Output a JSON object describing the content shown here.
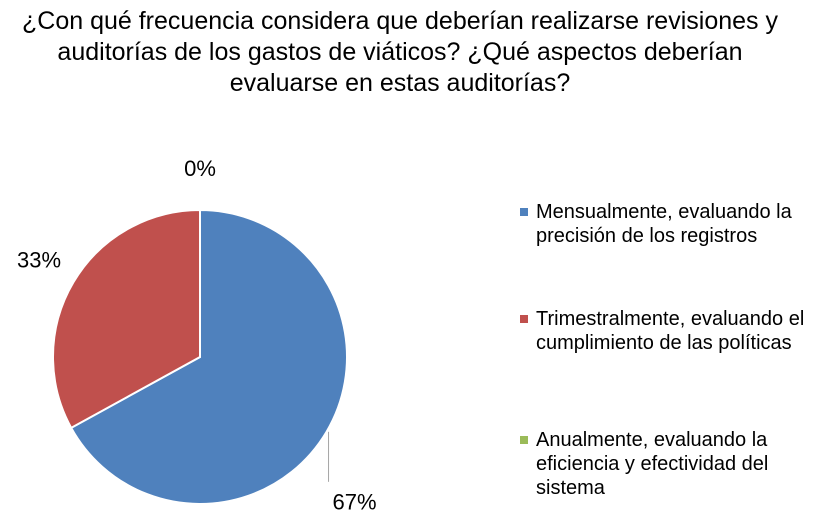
{
  "chart_data": {
    "type": "pie",
    "title": "¿Con qué frecuencia considera que deberían realizarse revisiones y auditorías de los gastos de viáticos? ¿Qué aspectos deberían evaluarse en estas auditorías?",
    "categories": [
      "Mensualmente, evaluando la precisión de los registros",
      "Trimestralmente, evaluando el cumplimiento de las políticas",
      "Anualmente, evaluando la eficiencia y efectividad del sistema"
    ],
    "values": [
      67,
      33,
      0
    ],
    "value_labels": [
      "67%",
      "33%",
      "0%"
    ],
    "colors": [
      "#4f81bd",
      "#c0504d",
      "#9bbb59"
    ],
    "legend": "right"
  }
}
